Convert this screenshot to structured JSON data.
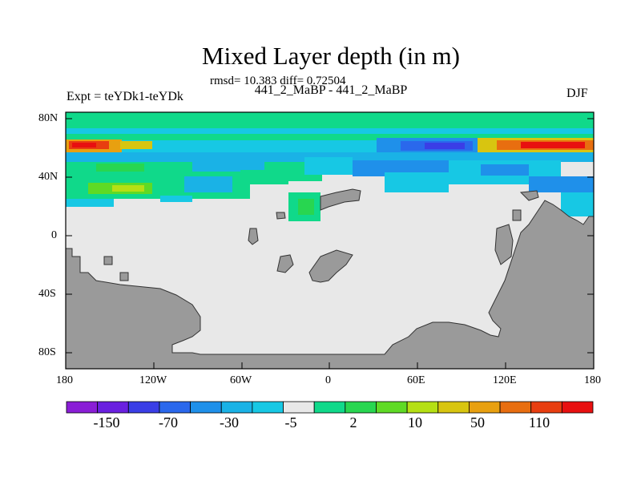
{
  "plot": {
    "title": "Mixed Layer depth (in m)",
    "stats": "rmsd= 10.383 diff= 0.72504",
    "subtitle": "441_2_MaBP - 441_2_MaBP",
    "left_label": "Expt = teYDk1-teYDk",
    "right_label": "DJF"
  },
  "axes": {
    "lat_ticks": [
      "80N",
      "40N",
      "0",
      "40S",
      "80S"
    ],
    "lon_ticks": [
      "180",
      "120W",
      "60W",
      "0",
      "60E",
      "120E",
      "180"
    ]
  },
  "colorbar": {
    "labels": [
      "-150",
      "-70",
      "-30",
      "-5",
      "2",
      "10",
      "50",
      "110"
    ],
    "colors": [
      "#8a1ed6",
      "#6a20e0",
      "#3a3ee6",
      "#2a68ec",
      "#1f90ea",
      "#1ab2e6",
      "#17c8e4",
      "#e8e8e8",
      "#10d98a",
      "#28d650",
      "#5fda25",
      "#b5e014",
      "#d8c510",
      "#e8a010",
      "#e86e10",
      "#e83e10",
      "#e81010"
    ]
  },
  "colors": {
    "land": "#9a9a9a",
    "ocean_neutral": "#e8e8e8"
  }
}
